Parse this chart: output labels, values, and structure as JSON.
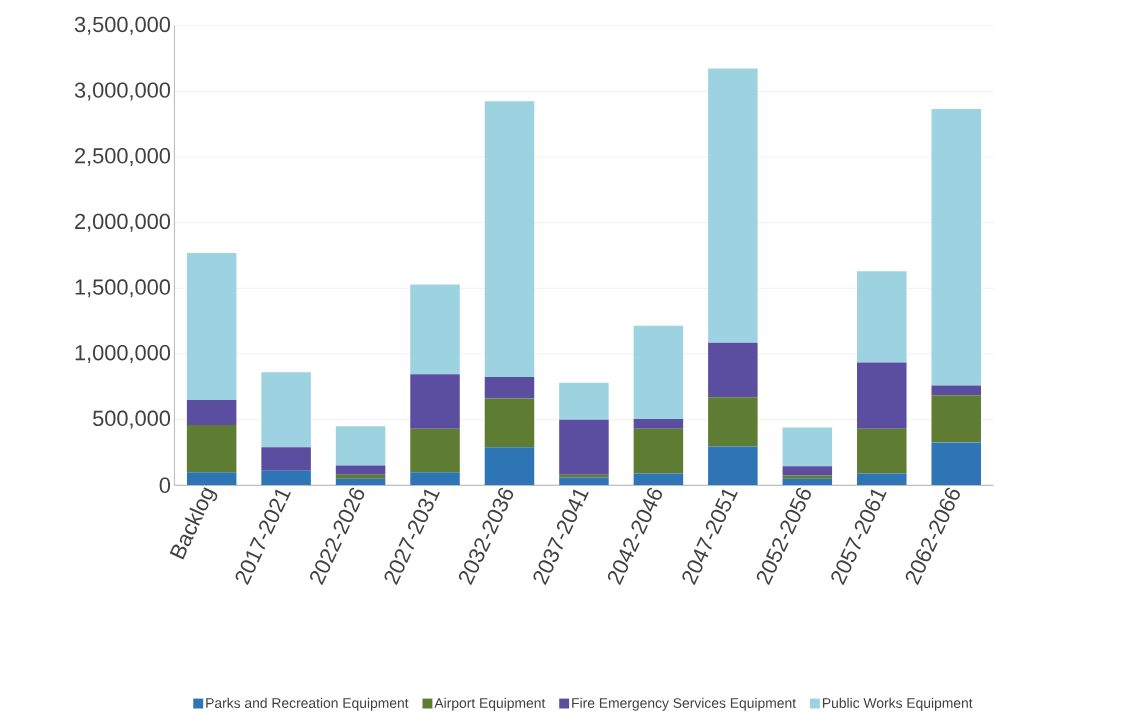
{
  "chart_data": {
    "type": "bar",
    "stacked": true,
    "categories": [
      "Backlog",
      "2017-2021",
      "2022-2026",
      "2027-2031",
      "2032-2036",
      "2037-2041",
      "2042-2046",
      "2047-2051",
      "2052-2056",
      "2057-2061",
      "2062-2066"
    ],
    "series": [
      {
        "name": "Parks and Recreation Equipment",
        "color": "#2e75b6",
        "values": [
          100000,
          110000,
          50000,
          100000,
          290000,
          60000,
          90000,
          295000,
          50000,
          90000,
          325000
        ]
      },
      {
        "name": "Airport Equipment",
        "color": "#5e7d32",
        "values": [
          360000,
          0,
          30000,
          330000,
          370000,
          20000,
          340000,
          375000,
          25000,
          340000,
          360000
        ]
      },
      {
        "name": "Fire Emergency Services Equipment",
        "color": "#5b4ea0",
        "values": [
          190000,
          180000,
          70000,
          415000,
          165000,
          420000,
          75000,
          415000,
          70000,
          505000,
          75000
        ]
      },
      {
        "name": "Public Works Equipment",
        "color": "#9dd3e0",
        "values": [
          1120000,
          570000,
          300000,
          685000,
          2100000,
          280000,
          710000,
          2090000,
          295000,
          695000,
          2105000
        ]
      }
    ],
    "ylim": [
      0,
      3500000
    ],
    "yticks": [
      {
        "value": 0,
        "label": "0"
      },
      {
        "value": 500000,
        "label": "500,000"
      },
      {
        "value": 1000000,
        "label": "1,000,000"
      },
      {
        "value": 1500000,
        "label": "1,500,000"
      },
      {
        "value": 2000000,
        "label": "2,000,000"
      },
      {
        "value": 2500000,
        "label": "2,500,000"
      },
      {
        "value": 3000000,
        "label": "3,000,000"
      },
      {
        "value": 3500000,
        "label": "3,500,000"
      }
    ],
    "grid": "y",
    "legend": "bottom"
  }
}
